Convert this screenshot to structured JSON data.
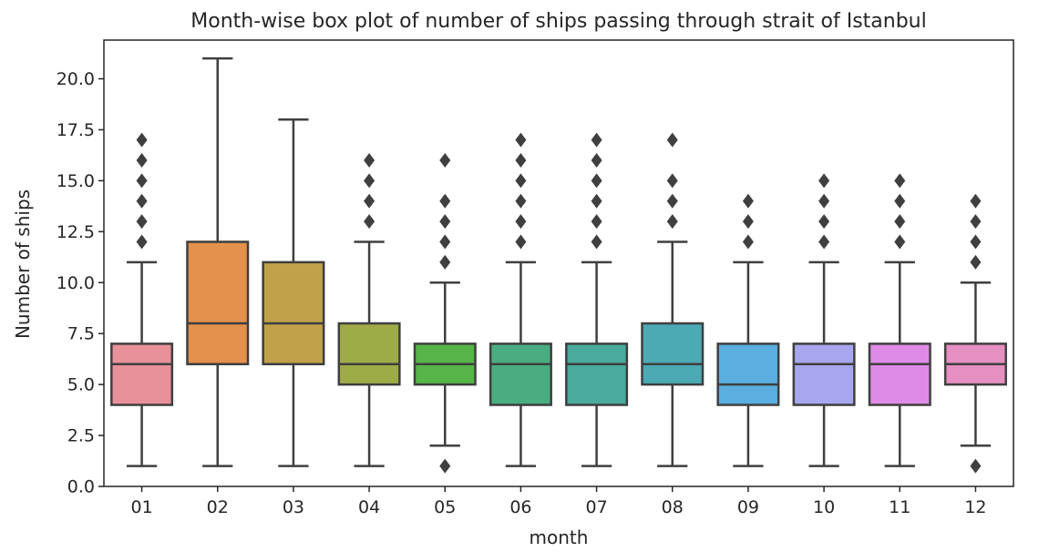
{
  "chart_data": {
    "type": "box",
    "title": "Month-wise box plot of number of ships passing through strait of Istanbul",
    "xlabel": "month",
    "ylabel": "Number of ships",
    "ylim": [
      0,
      21.9
    ],
    "yticks": [
      "0.0",
      "2.5",
      "5.0",
      "7.5",
      "10.0",
      "12.5",
      "15.0",
      "17.5",
      "20.0"
    ],
    "grid": false,
    "categories": [
      "01",
      "02",
      "03",
      "04",
      "05",
      "06",
      "07",
      "08",
      "09",
      "10",
      "11",
      "12"
    ],
    "boxes": [
      {
        "month": "01",
        "color": "#e8919a",
        "whisker_low": 1,
        "q1": 4,
        "median": 6,
        "q3": 7,
        "whisker_high": 11,
        "outliers": [
          12,
          13,
          14,
          15,
          16,
          17
        ]
      },
      {
        "month": "02",
        "color": "#e3914c",
        "whisker_low": 1,
        "q1": 6,
        "median": 8,
        "q3": 12,
        "whisker_high": 21,
        "outliers": []
      },
      {
        "month": "03",
        "color": "#c2a14b",
        "whisker_low": 1,
        "q1": 6,
        "median": 8,
        "q3": 11,
        "whisker_high": 18,
        "outliers": []
      },
      {
        "month": "04",
        "color": "#9fab47",
        "whisker_low": 1,
        "q1": 5,
        "median": 6,
        "q3": 8,
        "whisker_high": 12,
        "outliers": [
          13,
          14,
          15,
          16
        ]
      },
      {
        "month": "05",
        "color": "#56b548",
        "whisker_low": 2,
        "q1": 5,
        "median": 6,
        "q3": 7,
        "whisker_high": 10,
        "outliers": [
          1,
          11,
          12,
          13,
          14,
          16
        ]
      },
      {
        "month": "06",
        "color": "#4aad82",
        "whisker_low": 1,
        "q1": 4,
        "median": 6,
        "q3": 7,
        "whisker_high": 11,
        "outliers": [
          12,
          13,
          14,
          15,
          16,
          17
        ]
      },
      {
        "month": "07",
        "color": "#4aab9c",
        "whisker_low": 1,
        "q1": 4,
        "median": 6,
        "q3": 7,
        "whisker_high": 11,
        "outliers": [
          12,
          13,
          14,
          15,
          16,
          17
        ]
      },
      {
        "month": "08",
        "color": "#4baab3",
        "whisker_low": 1,
        "q1": 5,
        "median": 6,
        "q3": 8,
        "whisker_high": 12,
        "outliers": [
          13,
          14,
          15,
          17
        ]
      },
      {
        "month": "09",
        "color": "#5aaee0",
        "whisker_low": 1,
        "q1": 4,
        "median": 5,
        "q3": 7,
        "whisker_high": 11,
        "outliers": [
          12,
          13,
          14
        ]
      },
      {
        "month": "10",
        "color": "#a8a6ee",
        "whisker_low": 1,
        "q1": 4,
        "median": 6,
        "q3": 7,
        "whisker_high": 11,
        "outliers": [
          12,
          13,
          14,
          15
        ]
      },
      {
        "month": "11",
        "color": "#df8ae6",
        "whisker_low": 1,
        "q1": 4,
        "median": 6,
        "q3": 7,
        "whisker_high": 11,
        "outliers": [
          12,
          13,
          14,
          15
        ]
      },
      {
        "month": "12",
        "color": "#e68fc2",
        "whisker_low": 2,
        "q1": 5,
        "median": 6,
        "q3": 7,
        "whisker_high": 10,
        "outliers": [
          1,
          11,
          12,
          13,
          14
        ]
      }
    ]
  }
}
